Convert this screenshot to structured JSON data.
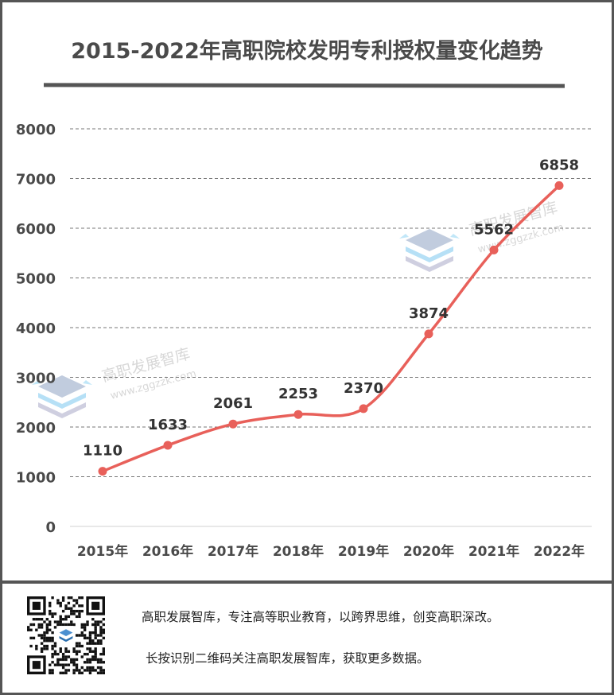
{
  "title": "2015-2022年高职院校发明专利授权量变化趋势",
  "chart_data": {
    "type": "line",
    "title": "2015-2022年高职院校发明专利授权量变化趋势",
    "categories": [
      "2015年",
      "2016年",
      "2017年",
      "2018年",
      "2019年",
      "2020年",
      "2021年",
      "2022年"
    ],
    "series": [
      {
        "name": "发明专利授权量",
        "values": [
          1110,
          1633,
          2061,
          2253,
          2370,
          3874,
          5562,
          6858
        ]
      }
    ],
    "xlabel": "",
    "ylabel": "",
    "ylim": [
      0,
      8000
    ],
    "yticks": [
      0,
      1000,
      2000,
      3000,
      4000,
      5000,
      6000,
      7000,
      8000
    ],
    "grid": true,
    "legend": "none",
    "line_color": "#e8605a",
    "smooth": true,
    "data_labels": [
      "1110",
      "1633",
      "2061",
      "2253",
      "2370",
      "3874",
      "5562",
      "6858"
    ]
  },
  "watermark": {
    "name": "高职发展智库",
    "url": "www.zggzzk.com"
  },
  "footer": {
    "line1": "高职发展智库，专注高等职业教育，以跨界思维，创变高职深改。",
    "line2": "长按识别二维码关注高职发展智库，获取更多数据。"
  },
  "colors": {
    "border": "#555555",
    "text": "#4a4a4a",
    "line": "#e8605a",
    "grid": "#888888"
  }
}
